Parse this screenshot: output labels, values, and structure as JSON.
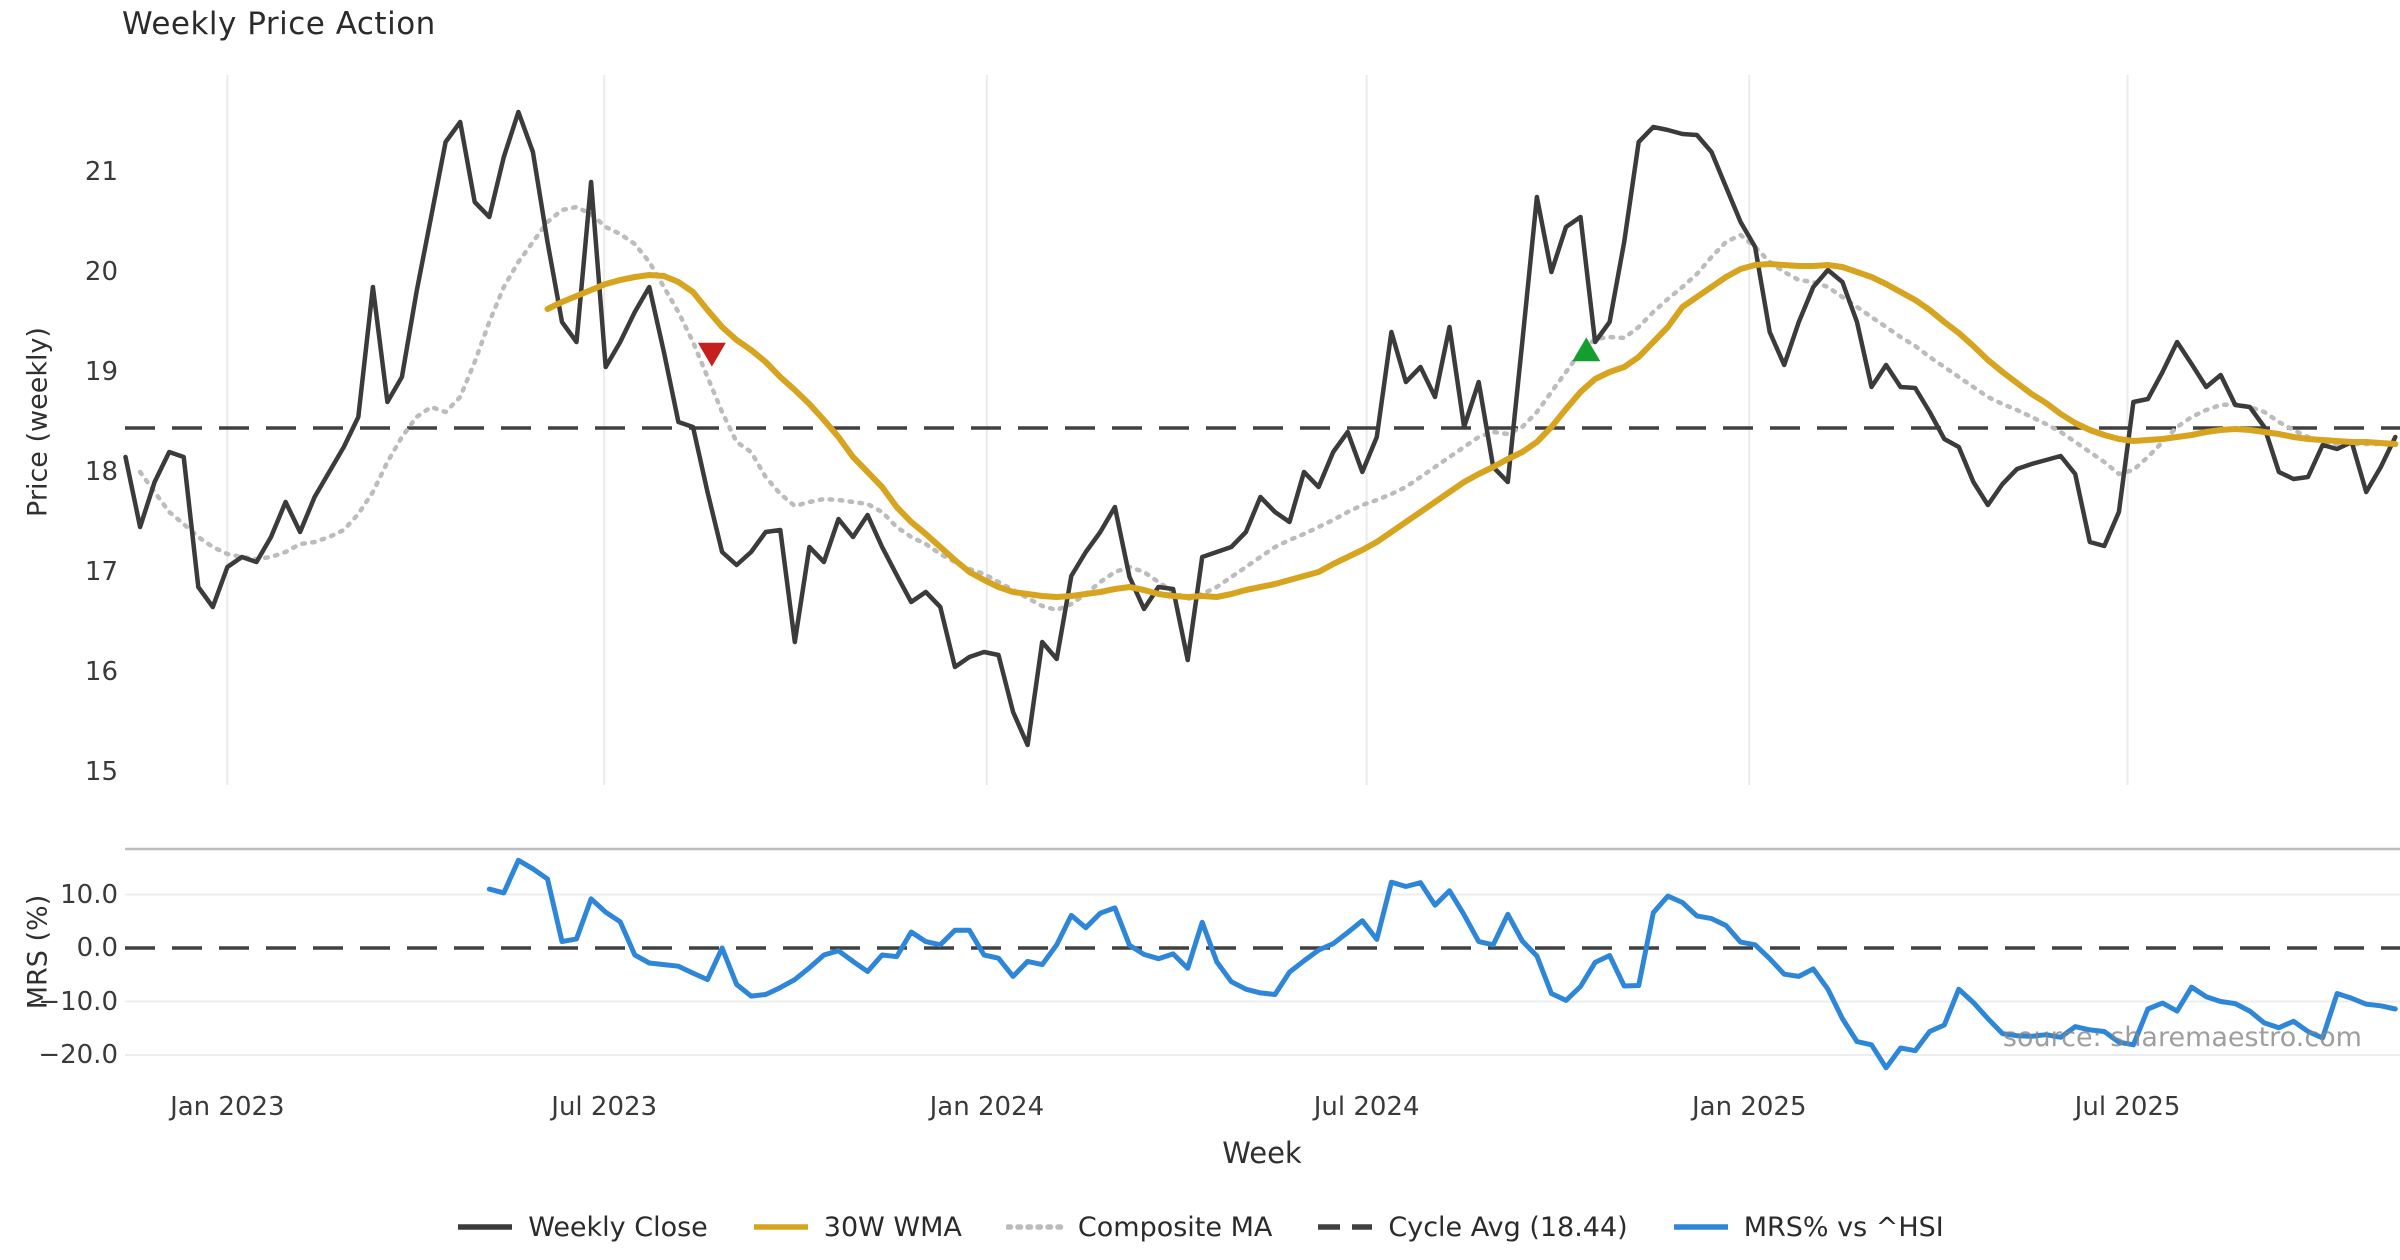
{
  "title": "Weekly Price Action",
  "watermark": "source: sharemaestro.com",
  "xlabel": "Week",
  "price_panel": {
    "ylabel": "Price (weekly)",
    "yticks": [
      21,
      20,
      19,
      18,
      17,
      16,
      15
    ]
  },
  "mrs_panel": {
    "ylabel": "MRS (%)",
    "yticks": [
      {
        "v": 10,
        "label": "10.0"
      },
      {
        "v": 0,
        "label": "0.0"
      },
      {
        "v": -10,
        "label": "−10.0"
      },
      {
        "v": -20,
        "label": "−20.0"
      }
    ],
    "gridline_values": [
      10,
      -10,
      -20
    ]
  },
  "xticks": [
    {
      "week": 7.0,
      "label": "Jan 2023"
    },
    {
      "week": 32.9,
      "label": "Jul 2023"
    },
    {
      "week": 59.2,
      "label": "Jan 2024"
    },
    {
      "week": 85.3,
      "label": "Jul 2024"
    },
    {
      "week": 111.6,
      "label": "Jan 2025"
    },
    {
      "week": 137.6,
      "label": "Jul 2025"
    }
  ],
  "legend": [
    {
      "label": "Weekly Close",
      "style": "solid",
      "color": "#3b3b3b"
    },
    {
      "label": "30W WMA",
      "style": "solid",
      "color": "#d6a41f"
    },
    {
      "label": "Composite MA",
      "style": "dotted",
      "color": "#bcbcbc"
    },
    {
      "label": "Cycle Avg (18.44)",
      "style": "dashed",
      "color": "#404040"
    },
    {
      "label": "MRS% vs ^HSI",
      "style": "solid",
      "color": "#2e86d8"
    }
  ],
  "colors": {
    "close": "#3b3b3b",
    "wma": "#d6a41f",
    "composite": "#bcbcbc",
    "cycle": "#404040",
    "mrs": "#2e86d8",
    "sell_marker": "#c51f1f",
    "buy_marker": "#149e2f",
    "grid": "#ebebeb",
    "mrs_grid": "#ededed",
    "mrs_spine": "#bdbdbd",
    "tick_text": "#3a3a3a"
  },
  "chart_data": [
    {
      "type": "line",
      "title": "Weekly Price Action",
      "ylabel": "Price (weekly)",
      "x_unit": "week",
      "start_date": "2022-11-14",
      "freq": "weekly",
      "ylim": [
        14.8,
        22.0
      ],
      "grid": "vertical-only",
      "cycle_avg": 18.44,
      "series": [
        {
          "name": "Weekly Close",
          "start_week": 0,
          "values": [
            18.15,
            17.45,
            17.9,
            18.2,
            18.15,
            16.85,
            16.65,
            17.05,
            17.15,
            17.1,
            17.35,
            17.7,
            17.4,
            17.75,
            18.0,
            18.25,
            18.55,
            19.85,
            18.7,
            18.95,
            19.8,
            20.55,
            21.3,
            21.5,
            20.7,
            20.55,
            21.15,
            21.6,
            21.2,
            20.3,
            19.5,
            19.3,
            20.9,
            19.05,
            19.3,
            19.6,
            19.85,
            19.2,
            18.5,
            18.45,
            17.8,
            17.2,
            17.07,
            17.2,
            17.4,
            17.42,
            16.3,
            17.25,
            17.1,
            17.53,
            17.35,
            17.57,
            17.25,
            16.97,
            16.7,
            16.8,
            16.65,
            16.05,
            16.15,
            16.2,
            16.17,
            15.6,
            15.27,
            16.3,
            16.13,
            16.96,
            17.2,
            17.4,
            17.65,
            16.95,
            16.63,
            16.85,
            16.83,
            16.12,
            17.15,
            17.2,
            17.25,
            17.4,
            17.75,
            17.6,
            17.5,
            18.0,
            17.85,
            18.2,
            18.4,
            18.0,
            18.35,
            19.4,
            18.9,
            19.05,
            18.75,
            19.45,
            18.45,
            18.9,
            18.05,
            17.9,
            19.3,
            20.75,
            20.0,
            20.45,
            20.55,
            19.3,
            19.5,
            20.3,
            21.3,
            21.45,
            21.42,
            21.38,
            21.37,
            21.2,
            20.85,
            20.5,
            20.25,
            19.4,
            19.07,
            19.5,
            19.85,
            20.02,
            19.9,
            19.5,
            18.85,
            19.07,
            18.85,
            18.84,
            18.6,
            18.33,
            18.25,
            17.9,
            17.67,
            17.88,
            18.03,
            18.08,
            18.12,
            18.16,
            17.98,
            17.3,
            17.26,
            17.6,
            18.7,
            18.73,
            19.0,
            19.3,
            19.08,
            18.85,
            18.97,
            18.67,
            18.65,
            18.45,
            18.0,
            17.93,
            17.95,
            18.27,
            18.23,
            18.3,
            17.8,
            18.05,
            18.35
          ]
        },
        {
          "name": "30W WMA",
          "start_week": 29,
          "values": [
            19.63,
            19.7,
            19.76,
            19.82,
            19.88,
            19.92,
            19.95,
            19.97,
            19.96,
            19.9,
            19.8,
            19.62,
            19.45,
            19.32,
            19.22,
            19.1,
            18.95,
            18.82,
            18.68,
            18.52,
            18.35,
            18.15,
            18.0,
            17.85,
            17.65,
            17.5,
            17.38,
            17.25,
            17.12,
            17.0,
            16.92,
            16.85,
            16.8,
            16.78,
            16.76,
            16.75,
            16.76,
            16.78,
            16.8,
            16.83,
            16.85,
            16.82,
            16.78,
            16.76,
            16.75,
            16.76,
            16.75,
            16.78,
            16.82,
            16.85,
            16.88,
            16.92,
            16.96,
            17.0,
            17.08,
            17.15,
            17.22,
            17.3,
            17.4,
            17.5,
            17.6,
            17.7,
            17.8,
            17.9,
            17.98,
            18.05,
            18.13,
            18.2,
            18.3,
            18.45,
            18.63,
            18.8,
            18.93,
            19.0,
            19.05,
            19.15,
            19.3,
            19.45,
            19.65,
            19.75,
            19.85,
            19.95,
            20.03,
            20.07,
            20.08,
            20.07,
            20.06,
            20.06,
            20.07,
            20.05,
            20.0,
            19.95,
            19.88,
            19.8,
            19.72,
            19.62,
            19.5,
            19.39,
            19.26,
            19.12,
            19.0,
            18.89,
            18.78,
            18.69,
            18.58,
            18.49,
            18.42,
            18.37,
            18.33,
            18.31,
            18.32,
            18.33,
            18.35,
            18.37,
            18.4,
            18.42,
            18.43,
            18.42,
            18.4,
            18.38,
            18.35,
            18.33,
            18.32,
            18.31,
            18.3,
            18.3,
            18.29,
            18.28
          ]
        },
        {
          "name": "Composite MA",
          "start_week": 1,
          "values": [
            18.0,
            17.8,
            17.6,
            17.48,
            17.35,
            17.25,
            17.18,
            17.15,
            17.13,
            17.15,
            17.2,
            17.28,
            17.3,
            17.35,
            17.42,
            17.58,
            17.8,
            18.1,
            18.35,
            18.55,
            18.65,
            18.6,
            18.75,
            19.1,
            19.5,
            19.85,
            20.1,
            20.3,
            20.5,
            20.62,
            20.65,
            20.58,
            20.45,
            20.38,
            20.28,
            20.1,
            19.85,
            19.6,
            19.3,
            18.95,
            18.6,
            18.3,
            18.2,
            17.95,
            17.78,
            17.66,
            17.7,
            17.73,
            17.72,
            17.7,
            17.68,
            17.6,
            17.45,
            17.35,
            17.28,
            17.18,
            17.1,
            17.03,
            16.98,
            16.9,
            16.82,
            16.74,
            16.66,
            16.62,
            16.68,
            16.78,
            16.9,
            17.0,
            17.05,
            17.0,
            16.9,
            16.8,
            16.73,
            16.78,
            16.85,
            16.95,
            17.05,
            17.15,
            17.25,
            17.32,
            17.38,
            17.45,
            17.52,
            17.6,
            17.67,
            17.72,
            17.78,
            17.85,
            17.95,
            18.05,
            18.15,
            18.25,
            18.35,
            18.4,
            18.38,
            18.45,
            18.6,
            18.8,
            19.0,
            19.2,
            19.33,
            19.35,
            19.34,
            19.45,
            19.6,
            19.73,
            19.85,
            19.98,
            20.15,
            20.3,
            20.37,
            20.25,
            20.1,
            20.0,
            19.92,
            19.9,
            19.85,
            19.75,
            19.65,
            19.55,
            19.45,
            19.35,
            19.26,
            19.15,
            19.05,
            18.95,
            18.85,
            18.75,
            18.68,
            18.62,
            18.55,
            18.48,
            18.4,
            18.3,
            18.2,
            18.1,
            17.98,
            18.02,
            18.15,
            18.3,
            18.45,
            18.55,
            18.62,
            18.67,
            18.68,
            18.65,
            18.6,
            18.5,
            18.42,
            18.35,
            18.3,
            18.28,
            18.28,
            18.28,
            18.28,
            18.27
          ]
        }
      ],
      "markers": [
        {
          "kind": "sell",
          "shape": "triangle-down",
          "week": 40.3,
          "price": 19.18,
          "color": "#c51f1f"
        },
        {
          "kind": "buy",
          "shape": "triangle-up",
          "week": 100.4,
          "price": 19.22,
          "color": "#149e2f"
        }
      ]
    },
    {
      "type": "line",
      "ylabel": "MRS (%)",
      "x_unit": "week",
      "start_date": "2022-11-14",
      "freq": "weekly",
      "ylim": [
        -23.5,
        18.5
      ],
      "zero_line": 0.0,
      "series": [
        {
          "name": "MRS% vs ^HSI",
          "start_week": 25,
          "values": [
            11.0,
            10.3,
            16.4,
            14.8,
            12.9,
            1.2,
            1.7,
            9.2,
            6.7,
            4.9,
            -1.3,
            -2.8,
            -3.1,
            -3.4,
            -4.7,
            -5.9,
            0.0,
            -6.8,
            -9.0,
            -8.7,
            -7.4,
            -5.9,
            -3.7,
            -1.3,
            -0.5,
            -2.5,
            -4.4,
            -1.3,
            -1.6,
            3.0,
            1.2,
            0.6,
            3.3,
            3.3,
            -1.3,
            -1.9,
            -5.3,
            -2.5,
            -3.1,
            0.6,
            6.1,
            3.8,
            6.5,
            7.5,
            0.5,
            -1.2,
            -2.0,
            -1.1,
            -3.8,
            4.8,
            -2.6,
            -6.3,
            -7.7,
            -8.4,
            -8.7,
            -4.5,
            -2.4,
            -0.4,
            0.8,
            2.9,
            5.1,
            1.6,
            12.3,
            11.5,
            12.2,
            8.0,
            10.7,
            6.2,
            1.2,
            0.6,
            6.3,
            1.3,
            -1.5,
            -8.5,
            -9.8,
            -7.2,
            -2.7,
            -1.4,
            -7.1,
            -7.0,
            6.6,
            9.7,
            8.5,
            6.0,
            5.5,
            4.2,
            1.1,
            0.6,
            -2.0,
            -4.9,
            -5.3,
            -3.9,
            -7.7,
            -13.2,
            -17.5,
            -18.1,
            -22.4,
            -18.7,
            -19.2,
            -15.6,
            -14.4,
            -7.7,
            -10.2,
            -13.2,
            -16.0,
            -16.4,
            -16.5,
            -16.2,
            -16.7,
            -14.7,
            -15.3,
            -15.6,
            -17.6,
            -18.1,
            -11.4,
            -10.3,
            -11.8,
            -7.3,
            -9.1,
            -10.0,
            -10.4,
            -11.8,
            -14.0,
            -14.9,
            -13.7,
            -15.6,
            -16.8,
            -8.5,
            -9.4,
            -10.5,
            -10.8,
            -11.4
          ]
        }
      ]
    }
  ]
}
